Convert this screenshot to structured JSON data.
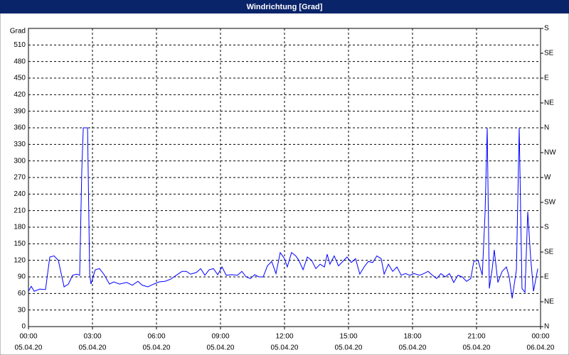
{
  "chart_data": {
    "type": "line",
    "title": "Windrichtung [Grad]",
    "y_label": "Grad",
    "color": "#0000ff",
    "grid": true,
    "xlim": [
      0,
      24
    ],
    "xticks": [
      {
        "value": 0,
        "label": "00:00"
      },
      {
        "value": 3,
        "label": "03:00"
      },
      {
        "value": 6,
        "label": "06:00"
      },
      {
        "value": 9,
        "label": "09:00"
      },
      {
        "value": 12,
        "label": "12:00"
      },
      {
        "value": 15,
        "label": "15:00"
      },
      {
        "value": 18,
        "label": "18:00"
      },
      {
        "value": 21,
        "label": "21:00"
      },
      {
        "value": 24,
        "label": "00:00"
      }
    ],
    "xtick_dates": [
      "05.04.20",
      "05.04.20",
      "05.04.20",
      "05.04.20",
      "05.04.20",
      "05.04.20",
      "05.04.20",
      "05.04.20",
      "06.04.20"
    ],
    "ylim": [
      0,
      540
    ],
    "yticks": [
      0,
      30,
      60,
      90,
      120,
      150,
      180,
      210,
      240,
      270,
      300,
      330,
      360,
      390,
      420,
      450,
      480,
      510
    ],
    "y2lim": [
      0,
      540
    ],
    "y2ticks": [
      {
        "value": 0,
        "label": "N"
      },
      {
        "value": 45,
        "label": "NE"
      },
      {
        "value": 90,
        "label": "E"
      },
      {
        "value": 135,
        "label": "SE"
      },
      {
        "value": 180,
        "label": "S"
      },
      {
        "value": 225,
        "label": "SW"
      },
      {
        "value": 270,
        "label": "W"
      },
      {
        "value": 315,
        "label": "NW"
      },
      {
        "value": 360,
        "label": "N"
      },
      {
        "value": 405,
        "label": "NE"
      },
      {
        "value": 450,
        "label": "E"
      },
      {
        "value": 495,
        "label": "SE"
      },
      {
        "value": 540,
        "label": "S"
      }
    ],
    "x": [
      0,
      0.13,
      0.27,
      0.53,
      0.8,
      1.0,
      1.2,
      1.4,
      1.67,
      1.87,
      2.07,
      2.27,
      2.4,
      2.5,
      2.57,
      2.77,
      2.87,
      2.93,
      3.13,
      3.33,
      3.53,
      3.8,
      4.0,
      4.27,
      4.6,
      4.87,
      5.13,
      5.33,
      5.6,
      5.87,
      6.13,
      6.4,
      6.67,
      6.93,
      7.2,
      7.4,
      7.6,
      7.87,
      8.07,
      8.27,
      8.47,
      8.67,
      8.87,
      9.07,
      9.27,
      9.53,
      9.8,
      10.0,
      10.2,
      10.4,
      10.6,
      10.8,
      11.0,
      11.2,
      11.4,
      11.6,
      11.8,
      12.0,
      12.13,
      12.33,
      12.53,
      12.67,
      12.87,
      13.07,
      13.27,
      13.47,
      13.67,
      13.87,
      14.0,
      14.13,
      14.33,
      14.53,
      14.73,
      14.93,
      15.13,
      15.33,
      15.53,
      15.73,
      15.93,
      16.13,
      16.33,
      16.53,
      16.67,
      16.87,
      17.07,
      17.27,
      17.47,
      17.67,
      17.87,
      18.07,
      18.33,
      18.53,
      18.73,
      18.93,
      19.13,
      19.33,
      19.53,
      19.73,
      19.93,
      20.13,
      20.33,
      20.53,
      20.73,
      20.87,
      21.07,
      21.27,
      21.4,
      21.5,
      21.6,
      21.73,
      21.83,
      22.0,
      22.2,
      22.4,
      22.53,
      22.67,
      22.87,
      23.0,
      23.13,
      23.27,
      23.4,
      23.53,
      23.67,
      23.87
    ],
    "values": [
      64,
      73,
      64,
      68,
      67,
      126,
      128,
      120,
      72,
      77,
      93,
      95,
      93,
      283,
      360,
      360,
      95,
      77,
      103,
      105,
      95,
      77,
      81,
      77,
      80,
      75,
      82,
      75,
      72,
      77,
      81,
      82,
      86,
      93,
      100,
      100,
      95,
      98,
      105,
      93,
      103,
      105,
      94,
      108,
      93,
      94,
      93,
      100,
      90,
      87,
      94,
      90,
      90,
      110,
      118,
      96,
      134,
      123,
      108,
      134,
      128,
      120,
      103,
      126,
      120,
      105,
      113,
      108,
      131,
      113,
      128,
      110,
      118,
      126,
      116,
      123,
      95,
      108,
      118,
      116,
      128,
      123,
      95,
      113,
      100,
      108,
      93,
      96,
      93,
      96,
      93,
      96,
      100,
      93,
      87,
      96,
      90,
      96,
      80,
      93,
      90,
      82,
      87,
      118,
      120,
      93,
      206,
      360,
      69,
      103,
      139,
      80,
      100,
      108,
      90,
      51,
      103,
      360,
      69,
      62,
      208,
      128,
      64,
      105
    ]
  }
}
